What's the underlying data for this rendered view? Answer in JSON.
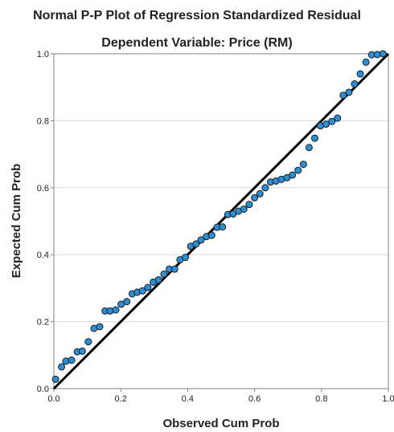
{
  "chart_data": {
    "type": "scatter",
    "title": "Normal P-P Plot of Regression Standardized Residual",
    "subtitle": "Dependent Variable: Price (RM)",
    "xlabel": "Observed Cum Prob",
    "ylabel": "Expected Cum Prob",
    "xlim": [
      0.0,
      1.0
    ],
    "ylim": [
      0.0,
      1.0
    ],
    "x_ticks": [
      "0.0",
      "0.2",
      "0.4",
      "0.6",
      "0.8",
      "1.0"
    ],
    "y_ticks": [
      "0.0",
      "0.2",
      "0.4",
      "0.6",
      "0.8",
      "1.0"
    ],
    "grid": "horizontal",
    "reference_line": {
      "from": [
        0.0,
        0.0
      ],
      "to": [
        1.0,
        1.0
      ]
    },
    "colors": {
      "marker_fill": "#2b8fd6",
      "marker_edge": "#1a1a1a",
      "reference_line": "#000000",
      "grid": "#d9d9d9"
    },
    "series": [
      {
        "x": [
          0.005,
          0.023,
          0.036,
          0.053,
          0.07,
          0.085,
          0.103,
          0.12,
          0.137,
          0.153,
          0.168,
          0.185,
          0.201,
          0.218,
          0.234,
          0.249,
          0.265,
          0.281,
          0.297,
          0.313,
          0.329,
          0.345,
          0.361,
          0.377,
          0.393,
          0.409,
          0.425,
          0.44,
          0.456,
          0.472,
          0.488,
          0.504,
          0.52,
          0.536,
          0.552,
          0.568,
          0.584,
          0.6,
          0.616,
          0.632,
          0.648,
          0.664,
          0.68,
          0.697,
          0.713,
          0.73,
          0.746,
          0.763,
          0.78,
          0.797,
          0.814,
          0.831,
          0.848,
          0.865,
          0.882,
          0.899,
          0.916,
          0.933,
          0.95,
          0.967,
          0.984
        ],
        "y": [
          0.028,
          0.065,
          0.082,
          0.085,
          0.11,
          0.112,
          0.14,
          0.18,
          0.185,
          0.232,
          0.232,
          0.235,
          0.252,
          0.26,
          0.283,
          0.288,
          0.292,
          0.302,
          0.318,
          0.325,
          0.342,
          0.357,
          0.357,
          0.385,
          0.392,
          0.425,
          0.432,
          0.444,
          0.454,
          0.458,
          0.482,
          0.483,
          0.52,
          0.522,
          0.53,
          0.536,
          0.55,
          0.57,
          0.582,
          0.6,
          0.617,
          0.62,
          0.625,
          0.63,
          0.638,
          0.652,
          0.67,
          0.72,
          0.748,
          0.785,
          0.79,
          0.798,
          0.808,
          0.876,
          0.885,
          0.91,
          0.94,
          0.975,
          0.997,
          0.998,
          1.0
        ]
      }
    ]
  }
}
